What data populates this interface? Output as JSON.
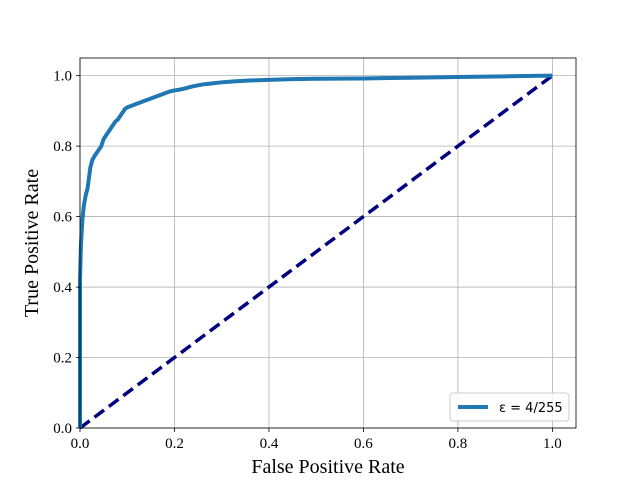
{
  "chart_data": {
    "type": "line",
    "xlabel": "False Positive Rate",
    "ylabel": "True Positive Rate",
    "xlim": [
      0.0,
      1.05
    ],
    "ylim": [
      0.0,
      1.05
    ],
    "xticks": [
      0.0,
      0.2,
      0.4,
      0.6,
      0.8,
      1.0
    ],
    "yticks": [
      0.0,
      0.2,
      0.4,
      0.6,
      0.8,
      1.0
    ],
    "xtick_labels": [
      "0.0",
      "0.2",
      "0.4",
      "0.6",
      "0.8",
      "1.0"
    ],
    "ytick_labels": [
      "0.0",
      "0.2",
      "0.4",
      "0.6",
      "0.8",
      "1.0"
    ],
    "grid": true,
    "legend_position": "lower-right",
    "series": [
      {
        "name": "ε = 4/255",
        "color": "#1f77b4",
        "style": "solid",
        "x": [
          0.0,
          0.0,
          0.002,
          0.005,
          0.008,
          0.012,
          0.016,
          0.02,
          0.022,
          0.026,
          0.03,
          0.035,
          0.04,
          0.045,
          0.05,
          0.055,
          0.06,
          0.065,
          0.07,
          0.075,
          0.08,
          0.085,
          0.09,
          0.095,
          0.1,
          0.11,
          0.12,
          0.13,
          0.14,
          0.15,
          0.16,
          0.17,
          0.18,
          0.19,
          0.2,
          0.21,
          0.22,
          0.24,
          0.26,
          0.28,
          0.3,
          0.33,
          0.36,
          0.4,
          0.45,
          0.5,
          0.6,
          0.7,
          0.8,
          0.9,
          1.0
        ],
        "y": [
          0.0,
          0.42,
          0.52,
          0.59,
          0.63,
          0.66,
          0.68,
          0.72,
          0.74,
          0.76,
          0.77,
          0.78,
          0.79,
          0.8,
          0.82,
          0.83,
          0.84,
          0.85,
          0.86,
          0.87,
          0.875,
          0.885,
          0.895,
          0.905,
          0.91,
          0.915,
          0.92,
          0.925,
          0.93,
          0.935,
          0.94,
          0.945,
          0.95,
          0.955,
          0.958,
          0.96,
          0.963,
          0.97,
          0.975,
          0.978,
          0.981,
          0.984,
          0.986,
          0.988,
          0.99,
          0.991,
          0.992,
          0.994,
          0.996,
          0.998,
          1.0
        ]
      },
      {
        "name": "",
        "color": "#000080",
        "style": "dashed",
        "x": [
          0.0,
          1.0
        ],
        "y": [
          0.0,
          1.0
        ]
      }
    ]
  }
}
